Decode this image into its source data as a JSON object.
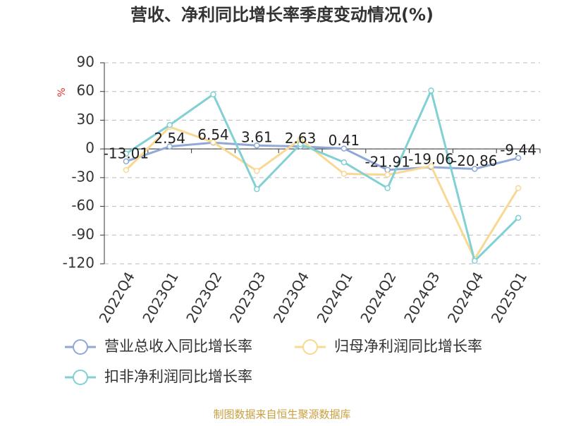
{
  "chart_data": {
    "type": "line",
    "title": "营收、净利同比增长率季度变动情况(%)",
    "y_label": "%",
    "source": "制图数据来自恒生聚源数据库",
    "categories": [
      "2022Q4",
      "2023Q1",
      "2023Q2",
      "2023Q3",
      "2023Q4",
      "2024Q1",
      "2024Q2",
      "2024Q3",
      "2024Q4",
      "2025Q1"
    ],
    "series": [
      {
        "name": "营业总收入同比增长率",
        "color": "#8fa8d8",
        "values": [
          -13.01,
          2.54,
          6.54,
          3.61,
          2.63,
          0.41,
          -21.91,
          -19.06,
          -20.86,
          -9.44
        ],
        "show_labels": true
      },
      {
        "name": "归母净利润同比增长率",
        "color": "#f8d892",
        "values": [
          -22,
          23,
          7,
          -23,
          10,
          -26,
          -27,
          -18,
          -115,
          -41
        ],
        "show_labels": false
      },
      {
        "name": "扣非净利润同比增长率",
        "color": "#80d0d4",
        "values": [
          -5,
          25,
          57,
          -42,
          5,
          -14,
          -41,
          61,
          -117,
          -72
        ],
        "show_labels": false
      }
    ],
    "ylim": [
      -120,
      90
    ],
    "yticks": [
      -120,
      -90,
      -60,
      -30,
      0,
      30,
      60,
      90
    ],
    "grid": true
  }
}
